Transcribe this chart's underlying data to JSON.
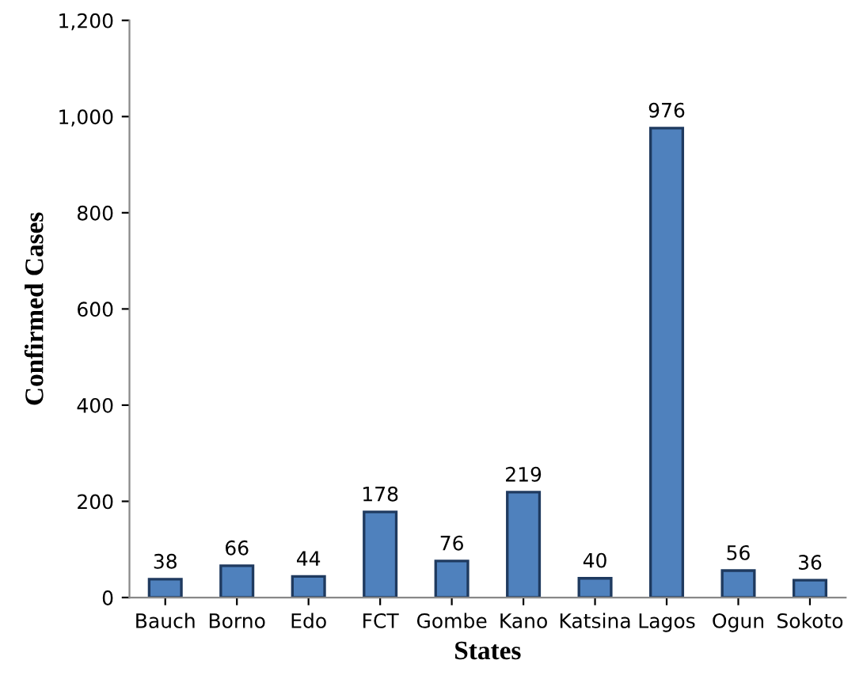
{
  "chart_data": {
    "type": "bar",
    "xlabel": "States",
    "ylabel": "Confirmed Cases",
    "categories": [
      "Bauch",
      "Borno",
      "Edo",
      "FCT",
      "Gombe",
      "Kano",
      "Katsina",
      "Lagos",
      "Ogun",
      "Sokoto"
    ],
    "values": [
      38,
      66,
      44,
      178,
      76,
      219,
      40,
      976,
      56,
      36
    ],
    "color": "#4f81bd",
    "ylim": [
      0,
      1200
    ],
    "yticks": [
      {
        "value": 0,
        "label": "0"
      },
      {
        "value": 200,
        "label": "200"
      },
      {
        "value": 400,
        "label": "400"
      },
      {
        "value": 600,
        "label": "600"
      },
      {
        "value": 800,
        "label": "800"
      },
      {
        "value": 1000,
        "label": "1,000"
      },
      {
        "value": 1200,
        "label": "1,200"
      }
    ],
    "grid": false,
    "legend": false,
    "data_labels": true
  }
}
